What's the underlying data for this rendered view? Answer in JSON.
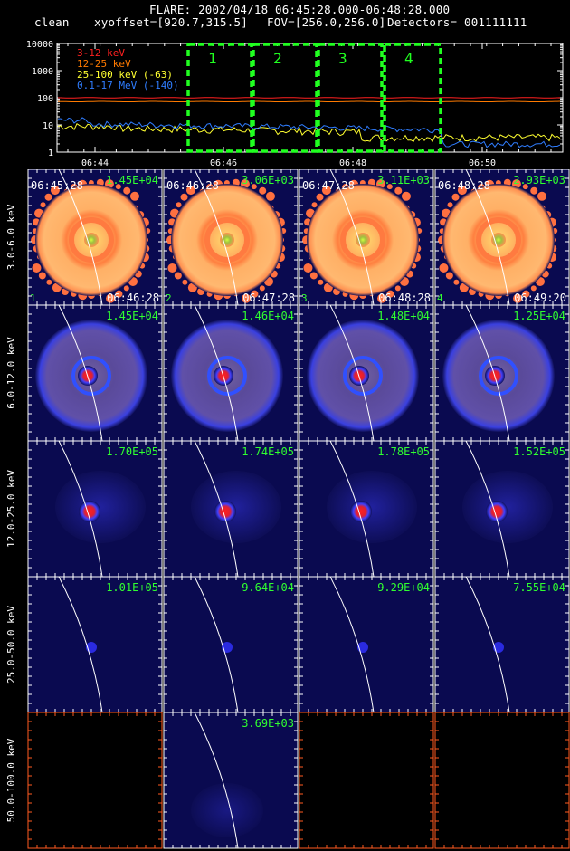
{
  "header": {
    "title": "FLARE: 2002/04/18 06:45:28.000-06:48:28.000",
    "method": "clean",
    "xyoffset": "xyoffset=[920.7,315.5]",
    "fov": "FOV=[256.0,256.0]",
    "detectors": "Detectors= 001111111"
  },
  "lightcurve": {
    "y_ticks": [
      "10000",
      "1000",
      "100",
      "10",
      "1"
    ],
    "x_ticks": [
      "06:44",
      "06:46",
      "06:48",
      "06:50"
    ],
    "legend": [
      {
        "label": "3-12 keV",
        "color": "#ff2020"
      },
      {
        "label": "12-25 keV",
        "color": "#ff7a00"
      },
      {
        "label": "25-100 keV (-63)",
        "color": "#ffff30"
      },
      {
        "label": "0.1-17 MeV (-140)",
        "color": "#2f7dff"
      }
    ],
    "intervals": [
      "1",
      "2",
      "3",
      "4"
    ],
    "interval_color": "#20ff20"
  },
  "rows": [
    {
      "energy": "3.0-6.0 keV",
      "kind": "ring_orange",
      "panels": [
        {
          "max": "1.45E+04",
          "t_start": "06:45:28",
          "t_end": "06:46:28",
          "index": "1"
        },
        {
          "max": "3.06E+03",
          "t_start": "06:46:28",
          "t_end": "06:47:28",
          "index": "2"
        },
        {
          "max": "3.11E+03",
          "t_start": "06:47:28",
          "t_end": "06:48:28",
          "index": "3"
        },
        {
          "max": "2.93E+03",
          "t_start": "06:48:28",
          "t_end": "06:49:20",
          "index": "4"
        }
      ]
    },
    {
      "energy": "6.0-12.0 keV",
      "kind": "ring_blue",
      "panels": [
        {
          "max": "1.45E+04"
        },
        {
          "max": "1.46E+04"
        },
        {
          "max": "1.48E+04"
        },
        {
          "max": "1.25E+04"
        }
      ]
    },
    {
      "energy": "12.0-25.0 keV",
      "kind": "source",
      "panels": [
        {
          "max": "1.70E+05"
        },
        {
          "max": "1.74E+05"
        },
        {
          "max": "1.78E+05"
        },
        {
          "max": "1.52E+05"
        }
      ]
    },
    {
      "energy": "25.0-50.0 keV",
      "kind": "faint",
      "panels": [
        {
          "max": "1.01E+05"
        },
        {
          "max": "9.64E+04"
        },
        {
          "max": "9.29E+04"
        },
        {
          "max": "7.55E+04"
        }
      ]
    },
    {
      "energy": "50.0-100.0 keV",
      "kind": "empty",
      "panels": [
        {
          "max": ""
        },
        {
          "max": "3.69E+03"
        },
        {
          "max": ""
        },
        {
          "max": ""
        }
      ]
    }
  ]
}
